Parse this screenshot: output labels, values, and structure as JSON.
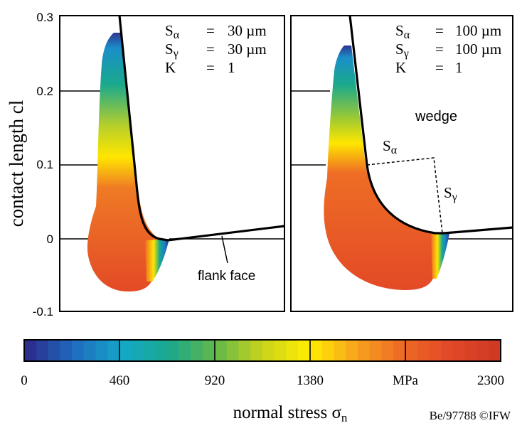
{
  "axis": {
    "ylabel": "contact length cl",
    "yticks": [
      "0.3",
      "0.2",
      "0.1",
      "0",
      "-0.1"
    ]
  },
  "panels": [
    {
      "params": [
        {
          "sym": "S",
          "sub": "α",
          "eq": "=",
          "val": "30 µm"
        },
        {
          "sym": "S",
          "sub": "γ",
          "eq": "=",
          "val": "30 µm"
        },
        {
          "sym": "K",
          "sub": "",
          "eq": "=",
          "val": "1"
        }
      ],
      "annotation": "flank face"
    },
    {
      "params": [
        {
          "sym": "S",
          "sub": "α",
          "eq": "=",
          "val": "100 µm"
        },
        {
          "sym": "S",
          "sub": "γ",
          "eq": "=",
          "val": "100 µm"
        },
        {
          "sym": "K",
          "sub": "",
          "eq": "=",
          "val": "1"
        }
      ],
      "wedge_label": "wedge",
      "s_alpha": {
        "sym": "S",
        "sub": "α"
      },
      "s_gamma": {
        "sym": "S",
        "sub": "γ"
      }
    }
  ],
  "colorbar": {
    "ticks": [
      "0",
      "460",
      "920",
      "1380",
      "MPa",
      "2300"
    ],
    "range": [
      0,
      2300
    ],
    "unit": "MPa",
    "colors": [
      "#2b2f8f",
      "#1f6fc0",
      "#15a8c8",
      "#1ba88c",
      "#63b84a",
      "#c9d31c",
      "#ffee00",
      "#f7a41c",
      "#ee6a26",
      "#e24a27",
      "#cf3a25"
    ]
  },
  "title": {
    "text": "normal stress σ",
    "sub": "n"
  },
  "credit": "Be/97788 ©IFW"
}
